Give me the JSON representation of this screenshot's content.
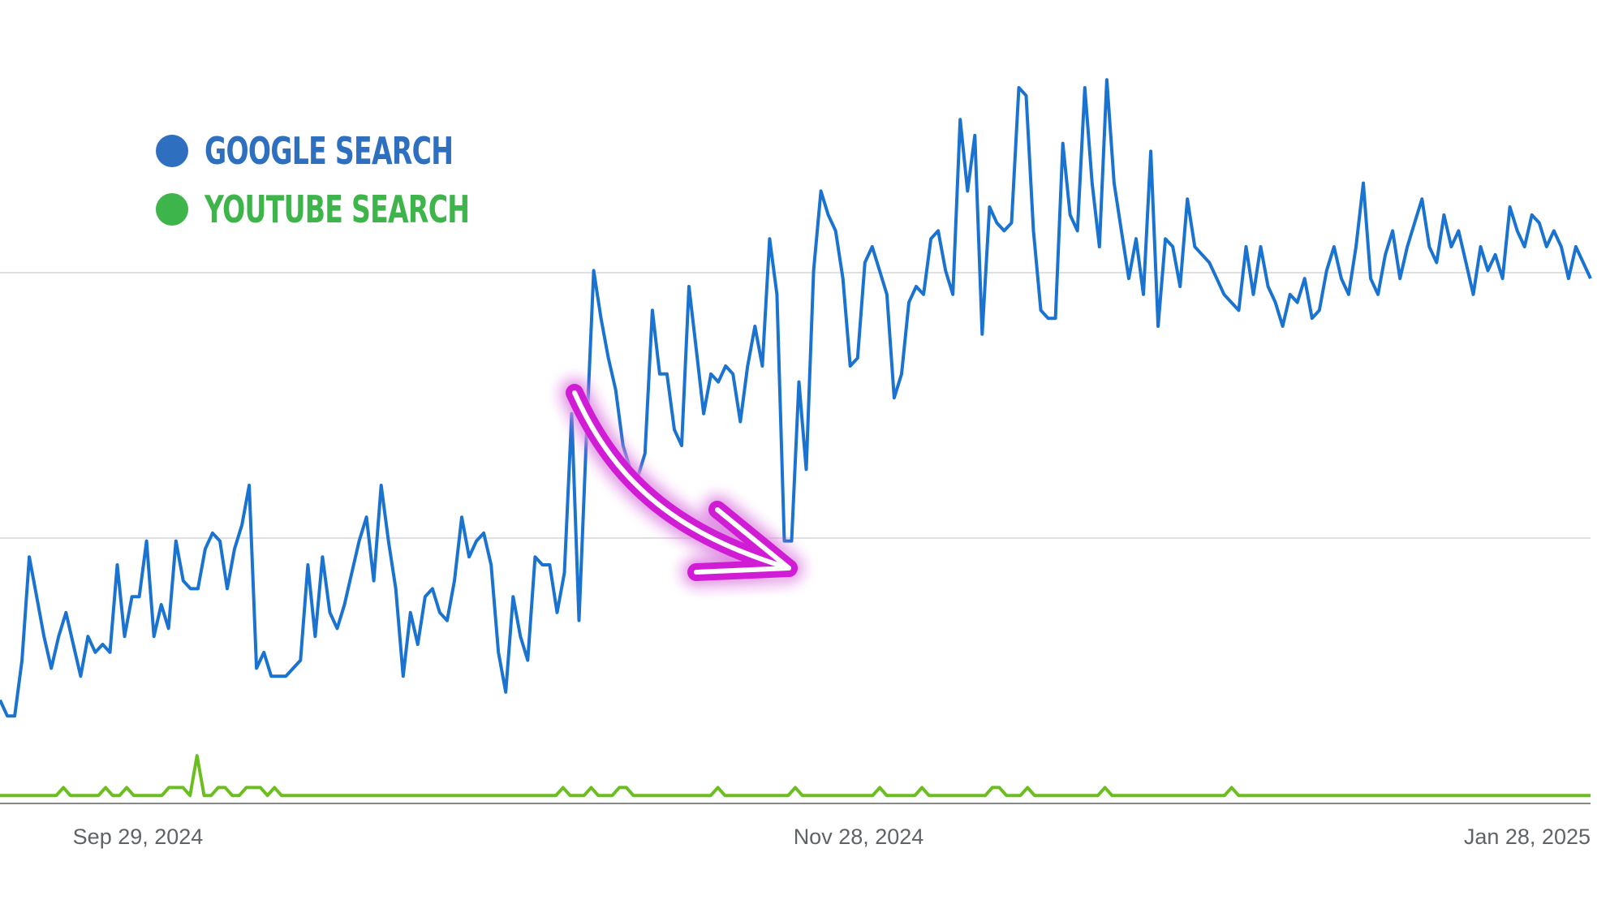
{
  "legend": {
    "items": [
      {
        "label": "GOOGLE SEARCH",
        "color": "#2f6fbf"
      },
      {
        "label": "YOUTUBE SEARCH",
        "color": "#3db54a"
      }
    ]
  },
  "chart_data": {
    "type": "line",
    "x_ticks": [
      "Sep 29, 2024",
      "Nov 28, 2024",
      "Jan 28, 2025"
    ],
    "ylim": [
      0,
      100
    ],
    "grid": true,
    "legend_position": "top-left",
    "annotation": "magenta-arrow",
    "series": [
      {
        "name": "GOOGLE SEARCH",
        "color": "#1a73d1",
        "values": [
          13,
          11,
          11,
          18,
          31,
          26,
          21,
          17,
          21,
          24,
          20,
          16,
          21,
          19,
          20,
          19,
          30,
          21,
          26,
          26,
          33,
          21,
          25,
          22,
          33,
          28,
          27,
          27,
          32,
          34,
          33,
          27,
          32,
          35,
          40,
          17,
          19,
          16,
          16,
          16,
          17,
          18,
          30,
          21,
          31,
          24,
          22,
          25,
          29,
          33,
          36,
          28,
          40,
          33,
          27,
          16,
          24,
          20,
          26,
          27,
          24,
          23,
          28,
          36,
          31,
          33,
          34,
          30,
          19,
          14,
          26,
          21,
          18,
          31,
          30,
          30,
          24,
          29,
          49,
          23,
          46,
          67,
          61,
          56,
          52,
          45,
          42,
          41,
          44,
          62,
          54,
          54,
          47,
          45,
          65,
          57,
          49,
          54,
          53,
          55,
          54,
          48,
          55,
          60,
          55,
          71,
          64,
          33,
          33,
          53,
          42,
          67,
          77,
          74,
          72,
          66,
          55,
          56,
          68,
          70,
          67,
          64,
          51,
          54,
          63,
          65,
          64,
          71,
          72,
          67,
          64,
          86,
          77,
          84,
          59,
          75,
          73,
          72,
          73,
          90,
          89,
          72,
          62,
          61,
          61,
          83,
          74,
          72,
          90,
          78,
          70,
          91,
          78,
          72,
          66,
          71,
          64,
          82,
          60,
          71,
          70,
          65,
          76,
          70,
          69,
          68,
          66,
          64,
          63,
          62,
          70,
          64,
          70,
          65,
          63,
          60,
          64,
          63,
          66,
          61,
          62,
          67,
          70,
          66,
          64,
          70,
          78,
          66,
          64,
          69,
          72,
          66,
          70,
          73,
          76,
          70,
          68,
          74,
          70,
          72,
          68,
          64,
          70,
          67,
          69,
          66,
          75,
          72,
          70,
          74,
          73,
          70,
          72,
          70,
          66,
          70,
          68,
          66
        ]
      },
      {
        "name": "",
        "color": "#6abf1e",
        "values": [
          1,
          1,
          1,
          1,
          1,
          1,
          1,
          1,
          1,
          2,
          1,
          1,
          1,
          1,
          1,
          2,
          1,
          1,
          2,
          1,
          1,
          1,
          1,
          1,
          2,
          2,
          2,
          1,
          6,
          1,
          1,
          2,
          2,
          1,
          1,
          2,
          2,
          2,
          1,
          2,
          1,
          1,
          1,
          1,
          1,
          1,
          1,
          1,
          1,
          1,
          1,
          1,
          1,
          1,
          1,
          1,
          1,
          1,
          1,
          1,
          1,
          1,
          1,
          1,
          1,
          1,
          1,
          1,
          1,
          1,
          1,
          1,
          1,
          1,
          1,
          1,
          1,
          1,
          1,
          1,
          2,
          1,
          1,
          1,
          2,
          1,
          1,
          1,
          2,
          2,
          1,
          1,
          1,
          1,
          1,
          1,
          1,
          1,
          1,
          1,
          1,
          1,
          2,
          1,
          1,
          1,
          1,
          1,
          1,
          1,
          1,
          1,
          1,
          2,
          1,
          1,
          1,
          1,
          1,
          1,
          1,
          1,
          1,
          1,
          1,
          2,
          1,
          1,
          1,
          1,
          1,
          2,
          1,
          1,
          1,
          1,
          1,
          1,
          1,
          1,
          1,
          2,
          2,
          1,
          1,
          1,
          2,
          1,
          1,
          1,
          1,
          1,
          1,
          1,
          1,
          1,
          1,
          2,
          1,
          1,
          1,
          1,
          1,
          1,
          1,
          1,
          1,
          1,
          1,
          1,
          1,
          1,
          1,
          1,
          1,
          2,
          1,
          1,
          1,
          1,
          1,
          1,
          1,
          1,
          1,
          1,
          1,
          1,
          1,
          1,
          1,
          1,
          1,
          1,
          1,
          1,
          1,
          1,
          1,
          1,
          1,
          1,
          1,
          1,
          1,
          1,
          1,
          1,
          1,
          1,
          1,
          1,
          1,
          1,
          1,
          1,
          1,
          1,
          1,
          1,
          1,
          1,
          1,
          1,
          1,
          1,
          1
        ]
      }
    ]
  }
}
